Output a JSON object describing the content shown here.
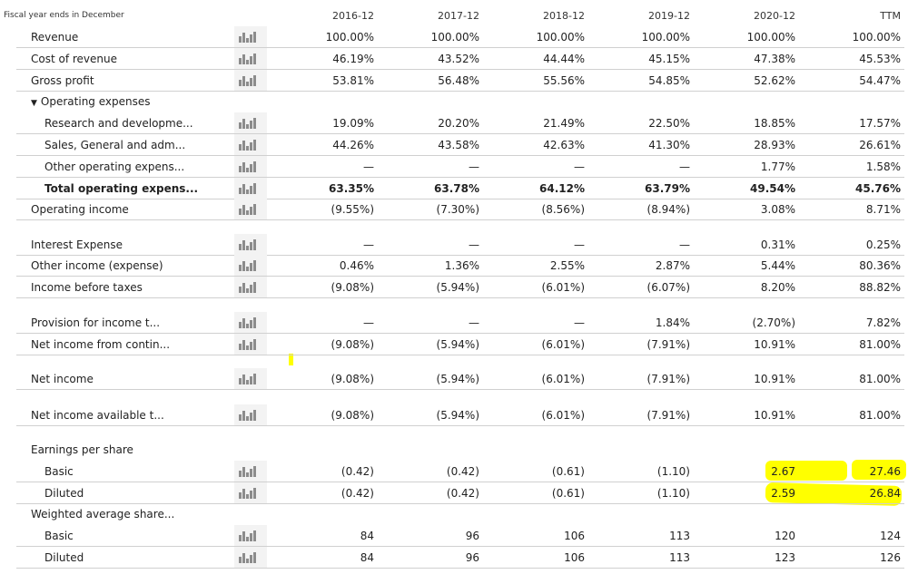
{
  "header": {
    "fiscal_label": "Fiscal year ends in December",
    "columns": [
      "2016-12",
      "2017-12",
      "2018-12",
      "2019-12",
      "2020-12",
      "TTM"
    ]
  },
  "rows": [
    {
      "label": "Revenue",
      "values": [
        "100.00%",
        "100.00%",
        "100.00%",
        "100.00%",
        "100.00%",
        "100.00%"
      ]
    },
    {
      "label": "Cost of revenue",
      "values": [
        "46.19%",
        "43.52%",
        "44.44%",
        "45.15%",
        "47.38%",
        "45.53%"
      ]
    },
    {
      "label": "Gross profit",
      "values": [
        "53.81%",
        "56.48%",
        "55.56%",
        "54.85%",
        "52.62%",
        "54.47%"
      ]
    },
    {
      "label": "Operating expenses",
      "values": []
    },
    {
      "label": "Research and developme...",
      "values": [
        "19.09%",
        "20.20%",
        "21.49%",
        "22.50%",
        "18.85%",
        "17.57%"
      ]
    },
    {
      "label": "Sales, General and adm...",
      "values": [
        "44.26%",
        "43.58%",
        "42.63%",
        "41.30%",
        "28.93%",
        "26.61%"
      ]
    },
    {
      "label": "Other operating expens...",
      "values": [
        "—",
        "—",
        "—",
        "—",
        "1.77%",
        "1.58%"
      ]
    },
    {
      "label": "Total operating expens...",
      "values": [
        "63.35%",
        "63.78%",
        "64.12%",
        "63.79%",
        "49.54%",
        "45.76%"
      ]
    },
    {
      "label": "Operating income",
      "values": [
        "(9.55%)",
        "(7.30%)",
        "(8.56%)",
        "(8.94%)",
        "3.08%",
        "8.71%"
      ]
    },
    {
      "label": "Interest Expense",
      "values": [
        "—",
        "—",
        "—",
        "—",
        "0.31%",
        "0.25%"
      ]
    },
    {
      "label": "Other income (expense)",
      "values": [
        "0.46%",
        "1.36%",
        "2.55%",
        "2.87%",
        "5.44%",
        "80.36%"
      ]
    },
    {
      "label": "Income before taxes",
      "values": [
        "(9.08%)",
        "(5.94%)",
        "(6.01%)",
        "(6.07%)",
        "8.20%",
        "88.82%"
      ]
    },
    {
      "label": "Provision for income t...",
      "values": [
        "—",
        "—",
        "—",
        "1.84%",
        "(2.70%)",
        "7.82%"
      ]
    },
    {
      "label": "Net income from contin...",
      "values": [
        "(9.08%)",
        "(5.94%)",
        "(6.01%)",
        "(7.91%)",
        "10.91%",
        "81.00%"
      ]
    },
    {
      "label": "Net income",
      "values": [
        "(9.08%)",
        "(5.94%)",
        "(6.01%)",
        "(7.91%)",
        "10.91%",
        "81.00%"
      ]
    },
    {
      "label": "Net income available t...",
      "values": [
        "(9.08%)",
        "(5.94%)",
        "(6.01%)",
        "(7.91%)",
        "10.91%",
        "81.00%"
      ]
    },
    {
      "label": "Earnings per share",
      "values": []
    },
    {
      "label": "Basic",
      "values": [
        "(0.42)",
        "(0.42)",
        "(0.61)",
        "(1.10)",
        "2.67",
        "27.46"
      ]
    },
    {
      "label": "Diluted",
      "values": [
        "(0.42)",
        "(0.42)",
        "(0.61)",
        "(1.10)",
        "2.59",
        "26.84"
      ]
    },
    {
      "label": "Weighted average share...",
      "values": []
    },
    {
      "label": "Basic",
      "values": [
        "84",
        "96",
        "106",
        "113",
        "120",
        "124"
      ]
    },
    {
      "label": "Diluted",
      "values": [
        "84",
        "96",
        "106",
        "113",
        "123",
        "126"
      ]
    }
  ],
  "icons": {
    "chart": "bar-chart-icon",
    "caret": "caret-down-icon"
  },
  "colors": {
    "highlight": "#ffff00",
    "row_line": "#d0d0d0",
    "icon_bar": "#8c8c8c"
  }
}
